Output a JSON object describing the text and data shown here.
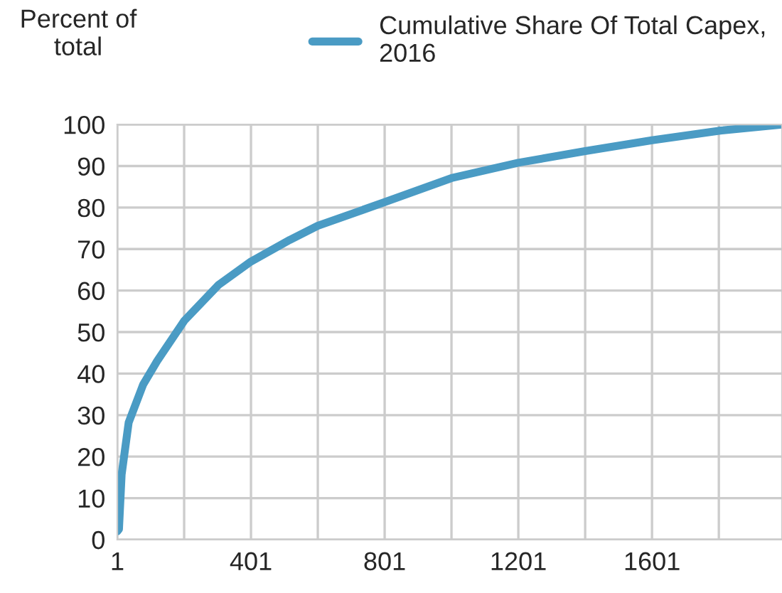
{
  "chart_data": {
    "type": "line",
    "ylabel": "Percent of total",
    "x": [
      1,
      6,
      14,
      35,
      78,
      120,
      201,
      303,
      401,
      517,
      601,
      801,
      1001,
      1201,
      1401,
      1601,
      1801,
      1990
    ],
    "series": [
      {
        "name": "Cumulative Share Of Total Capex, 2016",
        "color": "#4a9bc4",
        "values": [
          2,
          2.5,
          15.7,
          28.2,
          37.3,
          43,
          52.7,
          61.3,
          67,
          72.2,
          75.6,
          81.3,
          87.1,
          90.8,
          93.6,
          96.2,
          98.5,
          100
        ]
      }
    ],
    "xlim": [
      1,
      1990
    ],
    "xticks": [
      1,
      {
        "value": 201,
        "label": null
      },
      401,
      {
        "value": 601,
        "label": null
      },
      801,
      {
        "value": 1001,
        "label": null
      },
      1201,
      {
        "value": 1401,
        "label": null
      },
      1601,
      {
        "value": 1801,
        "label": null
      }
    ],
    "ylim": [
      0,
      100
    ],
    "yticks": [
      0,
      10,
      20,
      30,
      40,
      50,
      60,
      70,
      80,
      90,
      100
    ],
    "grid": true,
    "legend": "top right",
    "marker": "none",
    "line_style": "solid"
  }
}
